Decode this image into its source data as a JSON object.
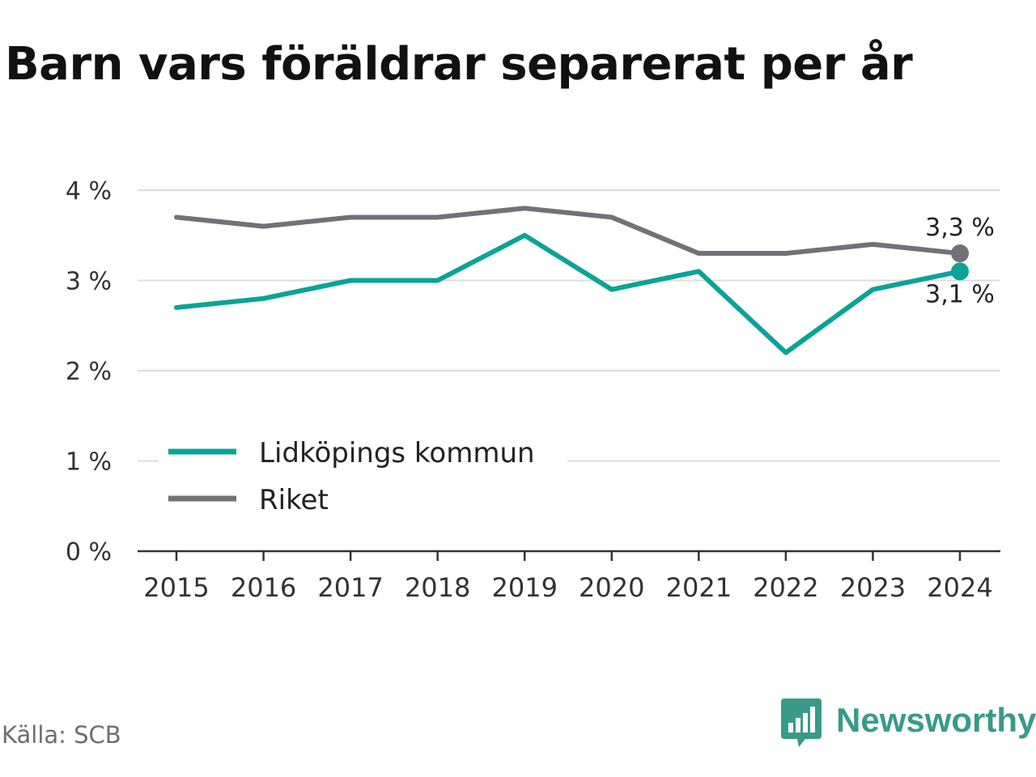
{
  "chart_data": {
    "type": "line",
    "title": "Barn vars föräldrar separerat per år",
    "xlabel": "",
    "ylabel": "",
    "x": [
      "2015",
      "2016",
      "2017",
      "2018",
      "2019",
      "2020",
      "2021",
      "2022",
      "2023",
      "2024"
    ],
    "ylim": [
      0,
      4
    ],
    "yticks": [
      0,
      1,
      2,
      3,
      4
    ],
    "ytick_labels": [
      "0 %",
      "1 %",
      "2 %",
      "3 %",
      "4 %"
    ],
    "grid": true,
    "legend_position": "bottom-left",
    "series": [
      {
        "name": "Lidköpings kommun",
        "color": "#0aa398",
        "values": [
          2.7,
          2.8,
          3.0,
          3.0,
          3.5,
          2.9,
          3.1,
          2.2,
          2.9,
          3.1
        ],
        "end_label": "3,1 %"
      },
      {
        "name": "Riket",
        "color": "#727178",
        "values": [
          3.7,
          3.6,
          3.7,
          3.7,
          3.8,
          3.7,
          3.3,
          3.3,
          3.4,
          3.3
        ],
        "end_label": "3,3 %"
      }
    ]
  },
  "source": "Källa: SCB",
  "brand": {
    "name": "Newsworthy",
    "icon": "newsworthy-logo-icon",
    "color": "#3a9a8a"
  }
}
